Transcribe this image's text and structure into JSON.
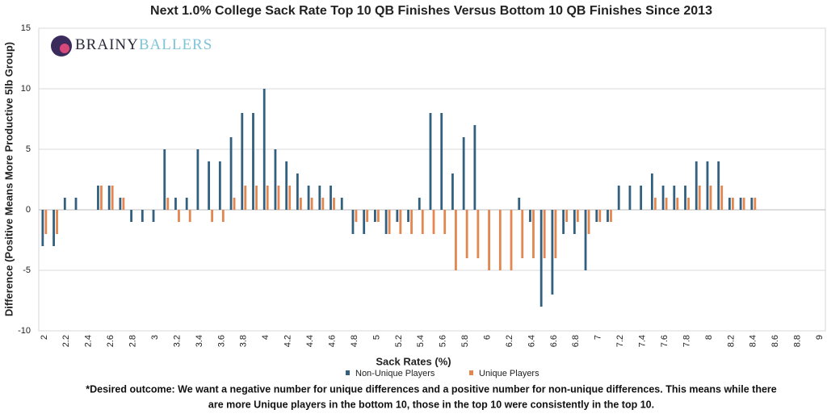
{
  "brand": {
    "first": "BRAINY",
    "second": "BALLERS"
  },
  "chart_data": {
    "type": "bar",
    "title": "Next 1.0% College Sack Rate Top 10 QB Finishes Versus Bottom 10 QB Finishes Since 2013",
    "x_label": "Sack Rates (%)",
    "y_label": "Difference (Positive Means More Productive 5lb Group)",
    "footnote": [
      "*Desired outcome: We want a negative number for unique differences and a positive number for non-unique differences. This means while there",
      "are more Unique players in the bottom 10, those in the top 10 were consistently in the top 10."
    ],
    "categories": [
      "2",
      null,
      "2.2",
      null,
      "2.4",
      null,
      "2.6",
      null,
      "2.8",
      null,
      "3",
      null,
      "3.2",
      null,
      "3.4",
      null,
      "3.6",
      null,
      "3.8",
      null,
      "4",
      null,
      "4.2",
      null,
      "4.4",
      null,
      "4.6",
      null,
      "4.8",
      null,
      "5",
      null,
      "5.2",
      null,
      "5.4",
      null,
      "5.6",
      null,
      "5.8",
      null,
      "6",
      null,
      "6.2",
      null,
      "6.4",
      null,
      "6.6",
      null,
      "6.8",
      null,
      "7",
      null,
      "7.2",
      null,
      "7.4",
      null,
      "7.6",
      null,
      "7.8",
      null,
      "8",
      null,
      "8.2",
      null,
      "8.4",
      null,
      "8.6",
      null,
      "8.8",
      null,
      "9"
    ],
    "series": [
      {
        "name": "Non-Unique Players",
        "color": "#33607f",
        "values": [
          -3,
          -3,
          1,
          1,
          0,
          2,
          2,
          1,
          -1,
          -1,
          -1,
          5,
          1,
          1,
          5,
          4,
          4,
          6,
          8,
          8,
          10,
          5,
          4,
          3,
          2,
          2,
          2,
          1,
          -2,
          -2,
          -1,
          -2,
          -1,
          -1,
          1,
          8,
          8,
          3,
          6,
          7,
          0,
          0,
          0,
          1,
          -1,
          -8,
          -7,
          -2,
          -2,
          -5,
          -1,
          -1,
          2,
          2,
          2,
          3,
          2,
          2,
          2,
          4,
          4,
          4,
          1,
          1,
          1,
          0,
          0,
          0,
          0,
          0,
          0
        ]
      },
      {
        "name": "Unique Players",
        "color": "#e3864f",
        "values": [
          -2,
          -2,
          0,
          0,
          0,
          2,
          2,
          1,
          0,
          0,
          0,
          1,
          -1,
          -1,
          0,
          -1,
          -1,
          1,
          2,
          2,
          2,
          2,
          2,
          1,
          1,
          1,
          1,
          0,
          -1,
          -1,
          -1,
          -2,
          -2,
          -2,
          -2,
          -2,
          -2,
          -5,
          -4,
          -4,
          -5,
          -5,
          -5,
          -4,
          -4,
          -4,
          -4,
          -1,
          -1,
          -2,
          -1,
          -1,
          0,
          0,
          0,
          1,
          1,
          1,
          1,
          2,
          2,
          2,
          1,
          1,
          1,
          0,
          0,
          0,
          0,
          0,
          0
        ]
      }
    ],
    "ylim": [
      -10,
      15
    ],
    "yticks": [
      -10,
      -5,
      0,
      5,
      10,
      15
    ],
    "grid": true
  }
}
